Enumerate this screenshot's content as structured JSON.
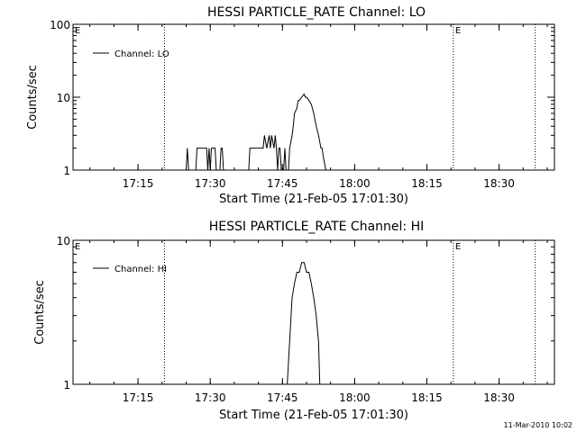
{
  "chart_data": [
    {
      "type": "line",
      "title": "HESSI PARTICLE_RATE Channel: LO",
      "xlabel": "Start Time (21-Feb-05 17:01:30)",
      "ylabel": "Counts/sec",
      "y_scale": "log",
      "ylim": [
        1,
        100
      ],
      "xlim": [
        "17:01:30",
        "18:41:30"
      ],
      "x_tick_labels": [
        "17:15",
        "17:30",
        "17:45",
        "18:00",
        "18:15",
        "18:30"
      ],
      "y_tick_labels": [
        "1",
        "10",
        "100"
      ],
      "legend": {
        "entries": [
          "Channel: LO"
        ],
        "placement": "top-left"
      },
      "event_markers": [
        {
          "time": "17:01:30",
          "label": "E"
        },
        {
          "time": "17:20:30",
          "label": ""
        },
        {
          "time": "18:20:30",
          "label": "E"
        },
        {
          "time": "18:37:30",
          "label": ""
        }
      ],
      "series": [
        {
          "name": "Channel: LO",
          "x": [
            "17:25:00",
            "17:25:15",
            "17:25:30",
            "17:27:00",
            "17:27:15",
            "17:27:30",
            "17:29:00",
            "17:29:15",
            "17:29:30",
            "17:29:45",
            "17:30:00",
            "17:30:15",
            "17:30:30",
            "17:31:00",
            "17:31:15",
            "17:32:00",
            "17:32:15",
            "17:32:30",
            "17:32:45",
            "17:33:00",
            "17:38:00",
            "17:38:15",
            "17:38:30",
            "17:41:00",
            "17:41:15",
            "17:41:45",
            "17:42:15",
            "17:42:30",
            "17:42:45",
            "17:43:15",
            "17:43:30",
            "17:43:45",
            "17:44:00",
            "17:44:15",
            "17:44:30",
            "17:44:45",
            "17:45:15",
            "17:45:30",
            "17:45:45",
            "17:46:15",
            "17:46:30",
            "17:47:00",
            "17:47:15",
            "17:47:30",
            "17:48:00",
            "17:48:15",
            "17:48:30",
            "17:49:00",
            "17:49:30",
            "17:49:45",
            "17:50:00",
            "17:50:30",
            "17:51:00",
            "17:51:30",
            "17:52:00",
            "17:52:30",
            "17:53:00",
            "17:53:15",
            "17:53:30",
            "17:54:00",
            "17:54:30",
            "17:55:00",
            "17:55:30",
            "17:55:45",
            "17:56:00"
          ],
          "values": [
            1,
            2,
            1,
            1,
            2,
            2,
            2,
            2,
            1,
            2,
            1,
            2,
            2,
            2,
            1,
            1,
            2,
            2,
            1,
            1,
            1,
            2,
            2,
            2,
            3,
            2,
            3,
            2,
            3,
            2,
            3,
            2,
            1,
            2,
            2,
            1,
            1,
            2,
            1,
            1,
            2,
            3,
            4,
            6,
            7,
            9,
            9,
            10,
            11,
            10,
            10,
            9,
            8,
            6,
            4,
            3,
            2,
            2,
            1.5,
            1,
            1,
            1,
            1,
            1,
            1
          ]
        }
      ]
    },
    {
      "type": "line",
      "title": "HESSI PARTICLE_RATE Channel: HI",
      "xlabel": "Start Time (21-Feb-05 17:01:30)",
      "ylabel": "Counts/sec",
      "y_scale": "log",
      "ylim": [
        1,
        10
      ],
      "xlim": [
        "17:01:30",
        "18:41:30"
      ],
      "x_tick_labels": [
        "17:15",
        "17:30",
        "17:45",
        "18:00",
        "18:15",
        "18:30"
      ],
      "y_tick_labels": [
        "1",
        "10"
      ],
      "legend": {
        "entries": [
          "Channel: HI"
        ],
        "placement": "top-left"
      },
      "event_markers": [
        {
          "time": "17:01:30",
          "label": "E"
        },
        {
          "time": "17:20:30",
          "label": ""
        },
        {
          "time": "18:20:30",
          "label": "E"
        },
        {
          "time": "18:37:30",
          "label": ""
        }
      ],
      "series": [
        {
          "name": "Channel: HI",
          "x": [
            "17:46:00",
            "17:46:30",
            "17:47:00",
            "17:47:30",
            "17:48:00",
            "17:48:30",
            "17:49:00",
            "17:49:30",
            "17:50:00",
            "17:50:30",
            "17:51:00",
            "17:51:30",
            "17:52:00",
            "17:52:30",
            "17:52:45"
          ],
          "values": [
            1,
            2,
            4,
            5,
            6,
            6,
            7,
            7,
            6,
            6,
            5,
            4,
            3,
            2,
            1
          ]
        }
      ]
    }
  ],
  "footer": {
    "timestamp": "11-Mar-2010 10:02"
  }
}
